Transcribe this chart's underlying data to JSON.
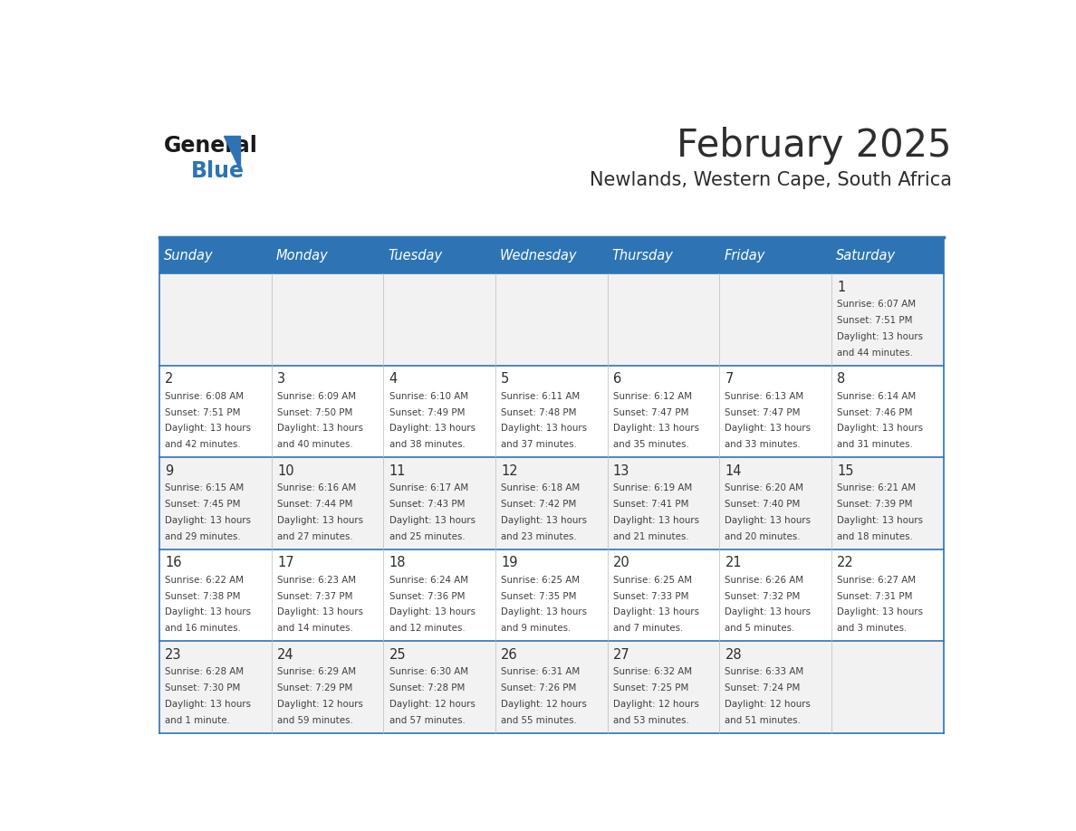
{
  "title": "February 2025",
  "subtitle": "Newlands, Western Cape, South Africa",
  "header_bg": "#2E74B5",
  "header_text_color": "#FFFFFF",
  "day_names": [
    "Sunday",
    "Monday",
    "Tuesday",
    "Wednesday",
    "Thursday",
    "Friday",
    "Saturday"
  ],
  "alt_row_bg": "#F2F2F2",
  "white_bg": "#FFFFFF",
  "border_color": "#2E74B5",
  "cell_text_color": "#404040",
  "day_num_color": "#2E2E2E",
  "logo_general_color": "#1A1A1A",
  "logo_blue_color": "#2E74B5",
  "calendar_data": [
    [
      null,
      null,
      null,
      null,
      null,
      null,
      {
        "day": 1,
        "sunrise": "6:07 AM",
        "sunset": "7:51 PM",
        "daylight": "13 hours",
        "daylight2": "and 44 minutes."
      }
    ],
    [
      {
        "day": 2,
        "sunrise": "6:08 AM",
        "sunset": "7:51 PM",
        "daylight": "13 hours",
        "daylight2": "and 42 minutes."
      },
      {
        "day": 3,
        "sunrise": "6:09 AM",
        "sunset": "7:50 PM",
        "daylight": "13 hours",
        "daylight2": "and 40 minutes."
      },
      {
        "day": 4,
        "sunrise": "6:10 AM",
        "sunset": "7:49 PM",
        "daylight": "13 hours",
        "daylight2": "and 38 minutes."
      },
      {
        "day": 5,
        "sunrise": "6:11 AM",
        "sunset": "7:48 PM",
        "daylight": "13 hours",
        "daylight2": "and 37 minutes."
      },
      {
        "day": 6,
        "sunrise": "6:12 AM",
        "sunset": "7:47 PM",
        "daylight": "13 hours",
        "daylight2": "and 35 minutes."
      },
      {
        "day": 7,
        "sunrise": "6:13 AM",
        "sunset": "7:47 PM",
        "daylight": "13 hours",
        "daylight2": "and 33 minutes."
      },
      {
        "day": 8,
        "sunrise": "6:14 AM",
        "sunset": "7:46 PM",
        "daylight": "13 hours",
        "daylight2": "and 31 minutes."
      }
    ],
    [
      {
        "day": 9,
        "sunrise": "6:15 AM",
        "sunset": "7:45 PM",
        "daylight": "13 hours",
        "daylight2": "and 29 minutes."
      },
      {
        "day": 10,
        "sunrise": "6:16 AM",
        "sunset": "7:44 PM",
        "daylight": "13 hours",
        "daylight2": "and 27 minutes."
      },
      {
        "day": 11,
        "sunrise": "6:17 AM",
        "sunset": "7:43 PM",
        "daylight": "13 hours",
        "daylight2": "and 25 minutes."
      },
      {
        "day": 12,
        "sunrise": "6:18 AM",
        "sunset": "7:42 PM",
        "daylight": "13 hours",
        "daylight2": "and 23 minutes."
      },
      {
        "day": 13,
        "sunrise": "6:19 AM",
        "sunset": "7:41 PM",
        "daylight": "13 hours",
        "daylight2": "and 21 minutes."
      },
      {
        "day": 14,
        "sunrise": "6:20 AM",
        "sunset": "7:40 PM",
        "daylight": "13 hours",
        "daylight2": "and 20 minutes."
      },
      {
        "day": 15,
        "sunrise": "6:21 AM",
        "sunset": "7:39 PM",
        "daylight": "13 hours",
        "daylight2": "and 18 minutes."
      }
    ],
    [
      {
        "day": 16,
        "sunrise": "6:22 AM",
        "sunset": "7:38 PM",
        "daylight": "13 hours",
        "daylight2": "and 16 minutes."
      },
      {
        "day": 17,
        "sunrise": "6:23 AM",
        "sunset": "7:37 PM",
        "daylight": "13 hours",
        "daylight2": "and 14 minutes."
      },
      {
        "day": 18,
        "sunrise": "6:24 AM",
        "sunset": "7:36 PM",
        "daylight": "13 hours",
        "daylight2": "and 12 minutes."
      },
      {
        "day": 19,
        "sunrise": "6:25 AM",
        "sunset": "7:35 PM",
        "daylight": "13 hours",
        "daylight2": "and 9 minutes."
      },
      {
        "day": 20,
        "sunrise": "6:25 AM",
        "sunset": "7:33 PM",
        "daylight": "13 hours",
        "daylight2": "and 7 minutes."
      },
      {
        "day": 21,
        "sunrise": "6:26 AM",
        "sunset": "7:32 PM",
        "daylight": "13 hours",
        "daylight2": "and 5 minutes."
      },
      {
        "day": 22,
        "sunrise": "6:27 AM",
        "sunset": "7:31 PM",
        "daylight": "13 hours",
        "daylight2": "and 3 minutes."
      }
    ],
    [
      {
        "day": 23,
        "sunrise": "6:28 AM",
        "sunset": "7:30 PM",
        "daylight": "13 hours",
        "daylight2": "and 1 minute."
      },
      {
        "day": 24,
        "sunrise": "6:29 AM",
        "sunset": "7:29 PM",
        "daylight": "12 hours",
        "daylight2": "and 59 minutes."
      },
      {
        "day": 25,
        "sunrise": "6:30 AM",
        "sunset": "7:28 PM",
        "daylight": "12 hours",
        "daylight2": "and 57 minutes."
      },
      {
        "day": 26,
        "sunrise": "6:31 AM",
        "sunset": "7:26 PM",
        "daylight": "12 hours",
        "daylight2": "and 55 minutes."
      },
      {
        "day": 27,
        "sunrise": "6:32 AM",
        "sunset": "7:25 PM",
        "daylight": "12 hours",
        "daylight2": "and 53 minutes."
      },
      {
        "day": 28,
        "sunrise": "6:33 AM",
        "sunset": "7:24 PM",
        "daylight": "12 hours",
        "daylight2": "and 51 minutes."
      },
      null
    ]
  ]
}
